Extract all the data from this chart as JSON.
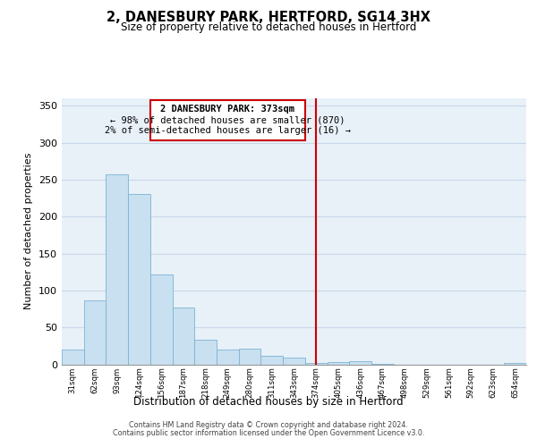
{
  "title": "2, DANESBURY PARK, HERTFORD, SG14 3HX",
  "subtitle": "Size of property relative to detached houses in Hertford",
  "xlabel": "Distribution of detached houses by size in Hertford",
  "ylabel": "Number of detached properties",
  "bar_labels": [
    "31sqm",
    "62sqm",
    "93sqm",
    "124sqm",
    "156sqm",
    "187sqm",
    "218sqm",
    "249sqm",
    "280sqm",
    "311sqm",
    "343sqm",
    "374sqm",
    "405sqm",
    "436sqm",
    "467sqm",
    "498sqm",
    "529sqm",
    "561sqm",
    "592sqm",
    "623sqm",
    "654sqm"
  ],
  "bar_values": [
    20,
    86,
    257,
    231,
    122,
    77,
    33,
    20,
    21,
    11,
    9,
    2,
    3,
    4,
    1,
    0,
    0,
    0,
    0,
    0,
    2
  ],
  "bar_color": "#c8e0f0",
  "bar_edge_color": "#7ab4d4",
  "marker_index": 11,
  "marker_color": "#cc0000",
  "annotation_title": "2 DANESBURY PARK: 373sqm",
  "annotation_line1": "← 98% of detached houses are smaller (870)",
  "annotation_line2": "2% of semi-detached houses are larger (16) →",
  "annotation_box_color": "#ffffff",
  "annotation_box_edge": "#cc0000",
  "ylim": [
    0,
    360
  ],
  "yticks": [
    0,
    50,
    100,
    150,
    200,
    250,
    300,
    350
  ],
  "footer_line1": "Contains HM Land Registry data © Crown copyright and database right 2024.",
  "footer_line2": "Contains public sector information licensed under the Open Government Licence v3.0.",
  "background_color": "#ffffff",
  "grid_color": "#c8d8e8"
}
